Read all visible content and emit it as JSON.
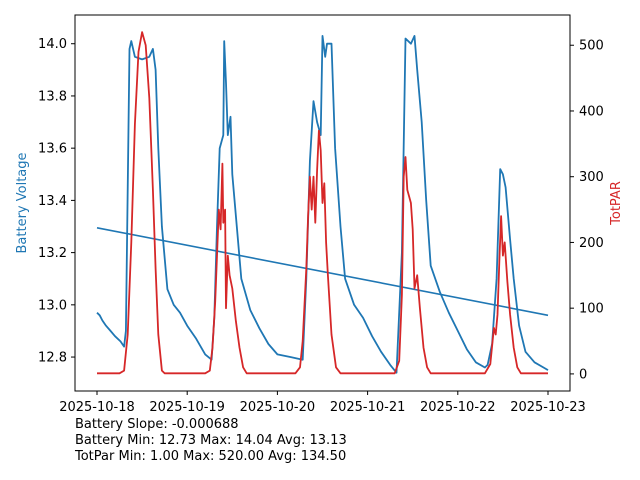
{
  "chart_data": {
    "type": "line",
    "title": "",
    "xlabel": "",
    "ylabel_left": "Battery Voltage",
    "ylabel_right": "TotPAR",
    "colors": {
      "battery": "#1f77b4",
      "par": "#d62728",
      "trend": "#1f77b4"
    },
    "x_range": [
      0,
      5
    ],
    "x_ticks": [
      {
        "value": 0,
        "label": "2025-10-18"
      },
      {
        "value": 1,
        "label": "2025-10-19"
      },
      {
        "value": 2,
        "label": "2025-10-20"
      },
      {
        "value": 3,
        "label": "2025-10-21"
      },
      {
        "value": 4,
        "label": "2025-10-22"
      },
      {
        "value": 5,
        "label": "2025-10-23"
      }
    ],
    "y_left_range": [
      12.67,
      14.11
    ],
    "y_left_ticks": [
      "12.8",
      "13.0",
      "13.2",
      "13.4",
      "13.6",
      "13.8",
      "14.0"
    ],
    "y_right_range": [
      -26,
      546
    ],
    "y_right_ticks": [
      "0",
      "100",
      "200",
      "300",
      "400",
      "500"
    ],
    "series": [
      {
        "name": "Battery Voltage",
        "axis": "left",
        "points": [
          [
            0.0,
            12.97
          ],
          [
            0.03,
            12.96
          ],
          [
            0.06,
            12.94
          ],
          [
            0.1,
            12.92
          ],
          [
            0.15,
            12.9
          ],
          [
            0.2,
            12.88
          ],
          [
            0.26,
            12.86
          ],
          [
            0.3,
            12.84
          ],
          [
            0.32,
            12.9
          ],
          [
            0.36,
            13.98
          ],
          [
            0.38,
            14.01
          ],
          [
            0.42,
            13.95
          ],
          [
            0.5,
            13.94
          ],
          [
            0.58,
            13.95
          ],
          [
            0.62,
            13.98
          ],
          [
            0.65,
            13.9
          ],
          [
            0.68,
            13.6
          ],
          [
            0.72,
            13.3
          ],
          [
            0.78,
            13.06
          ],
          [
            0.85,
            13.0
          ],
          [
            0.92,
            12.97
          ],
          [
            1.0,
            12.92
          ],
          [
            1.1,
            12.87
          ],
          [
            1.2,
            12.81
          ],
          [
            1.27,
            12.79
          ],
          [
            1.3,
            12.95
          ],
          [
            1.33,
            13.3
          ],
          [
            1.36,
            13.6
          ],
          [
            1.4,
            13.65
          ],
          [
            1.41,
            14.01
          ],
          [
            1.43,
            13.85
          ],
          [
            1.45,
            13.65
          ],
          [
            1.48,
            13.72
          ],
          [
            1.5,
            13.5
          ],
          [
            1.55,
            13.3
          ],
          [
            1.6,
            13.1
          ],
          [
            1.7,
            12.98
          ],
          [
            1.8,
            12.91
          ],
          [
            1.9,
            12.85
          ],
          [
            2.0,
            12.81
          ],
          [
            2.15,
            12.8
          ],
          [
            2.28,
            12.79
          ],
          [
            2.32,
            13.1
          ],
          [
            2.36,
            13.55
          ],
          [
            2.4,
            13.78
          ],
          [
            2.44,
            13.7
          ],
          [
            2.48,
            13.65
          ],
          [
            2.5,
            14.03
          ],
          [
            2.53,
            13.95
          ],
          [
            2.55,
            14.0
          ],
          [
            2.6,
            14.0
          ],
          [
            2.64,
            13.6
          ],
          [
            2.7,
            13.3
          ],
          [
            2.75,
            13.1
          ],
          [
            2.85,
            13.0
          ],
          [
            2.95,
            12.95
          ],
          [
            3.05,
            12.88
          ],
          [
            3.15,
            12.82
          ],
          [
            3.25,
            12.77
          ],
          [
            3.32,
            12.74
          ],
          [
            3.38,
            13.2
          ],
          [
            3.42,
            14.02
          ],
          [
            3.48,
            14.0
          ],
          [
            3.52,
            14.03
          ],
          [
            3.55,
            13.9
          ],
          [
            3.6,
            13.7
          ],
          [
            3.65,
            13.4
          ],
          [
            3.7,
            13.15
          ],
          [
            3.8,
            13.05
          ],
          [
            3.9,
            12.97
          ],
          [
            4.0,
            12.9
          ],
          [
            4.1,
            12.83
          ],
          [
            4.2,
            12.78
          ],
          [
            4.3,
            12.76
          ],
          [
            4.33,
            12.77
          ],
          [
            4.38,
            12.85
          ],
          [
            4.43,
            13.1
          ],
          [
            4.47,
            13.52
          ],
          [
            4.5,
            13.5
          ],
          [
            4.53,
            13.45
          ],
          [
            4.58,
            13.25
          ],
          [
            4.62,
            13.1
          ],
          [
            4.68,
            12.92
          ],
          [
            4.75,
            12.82
          ],
          [
            4.85,
            12.78
          ],
          [
            4.95,
            12.76
          ],
          [
            5.0,
            12.75
          ]
        ]
      },
      {
        "name": "TotPAR",
        "axis": "right",
        "points": [
          [
            0.0,
            1
          ],
          [
            0.25,
            1
          ],
          [
            0.3,
            5
          ],
          [
            0.34,
            60
          ],
          [
            0.38,
            200
          ],
          [
            0.42,
            380
          ],
          [
            0.46,
            490
          ],
          [
            0.5,
            520
          ],
          [
            0.54,
            500
          ],
          [
            0.58,
            420
          ],
          [
            0.62,
            280
          ],
          [
            0.65,
            160
          ],
          [
            0.68,
            60
          ],
          [
            0.72,
            5
          ],
          [
            0.75,
            1
          ],
          [
            1.2,
            1
          ],
          [
            1.25,
            5
          ],
          [
            1.28,
            40
          ],
          [
            1.31,
            110
          ],
          [
            1.33,
            180
          ],
          [
            1.35,
            250
          ],
          [
            1.37,
            220
          ],
          [
            1.39,
            320
          ],
          [
            1.4,
            230
          ],
          [
            1.42,
            250
          ],
          [
            1.43,
            100
          ],
          [
            1.45,
            180
          ],
          [
            1.47,
            150
          ],
          [
            1.5,
            130
          ],
          [
            1.54,
            80
          ],
          [
            1.58,
            40
          ],
          [
            1.62,
            10
          ],
          [
            1.66,
            1
          ],
          [
            2.2,
            1
          ],
          [
            2.25,
            10
          ],
          [
            2.28,
            50
          ],
          [
            2.32,
            160
          ],
          [
            2.34,
            240
          ],
          [
            2.36,
            300
          ],
          [
            2.38,
            250
          ],
          [
            2.4,
            300
          ],
          [
            2.42,
            230
          ],
          [
            2.44,
            310
          ],
          [
            2.46,
            370
          ],
          [
            2.48,
            340
          ],
          [
            2.5,
            260
          ],
          [
            2.52,
            290
          ],
          [
            2.54,
            200
          ],
          [
            2.56,
            150
          ],
          [
            2.6,
            60
          ],
          [
            2.65,
            10
          ],
          [
            2.7,
            1
          ],
          [
            3.3,
            1
          ],
          [
            3.35,
            20
          ],
          [
            3.38,
            120
          ],
          [
            3.4,
            300
          ],
          [
            3.42,
            330
          ],
          [
            3.44,
            280
          ],
          [
            3.46,
            270
          ],
          [
            3.48,
            260
          ],
          [
            3.5,
            220
          ],
          [
            3.52,
            130
          ],
          [
            3.55,
            150
          ],
          [
            3.58,
            100
          ],
          [
            3.62,
            40
          ],
          [
            3.66,
            10
          ],
          [
            3.7,
            1
          ],
          [
            4.3,
            1
          ],
          [
            4.36,
            15
          ],
          [
            4.4,
            70
          ],
          [
            4.42,
            60
          ],
          [
            4.44,
            90
          ],
          [
            4.46,
            170
          ],
          [
            4.48,
            240
          ],
          [
            4.5,
            180
          ],
          [
            4.52,
            200
          ],
          [
            4.55,
            140
          ],
          [
            4.58,
            90
          ],
          [
            4.62,
            40
          ],
          [
            4.66,
            10
          ],
          [
            4.7,
            1
          ],
          [
            5.0,
            1
          ]
        ]
      },
      {
        "name": "Battery Trend",
        "axis": "left",
        "style": "linear-fit",
        "points": [
          [
            0.0,
            13.295
          ],
          [
            5.0,
            12.96
          ]
        ]
      }
    ]
  },
  "stats": {
    "battery_slope": "Battery Slope: -0.000688",
    "battery_summary": "Battery Min: 12.73 Max: 14.04 Avg: 13.13",
    "totpar_summary": "TotPar Min: 1.00 Max: 520.00 Avg: 134.50"
  }
}
